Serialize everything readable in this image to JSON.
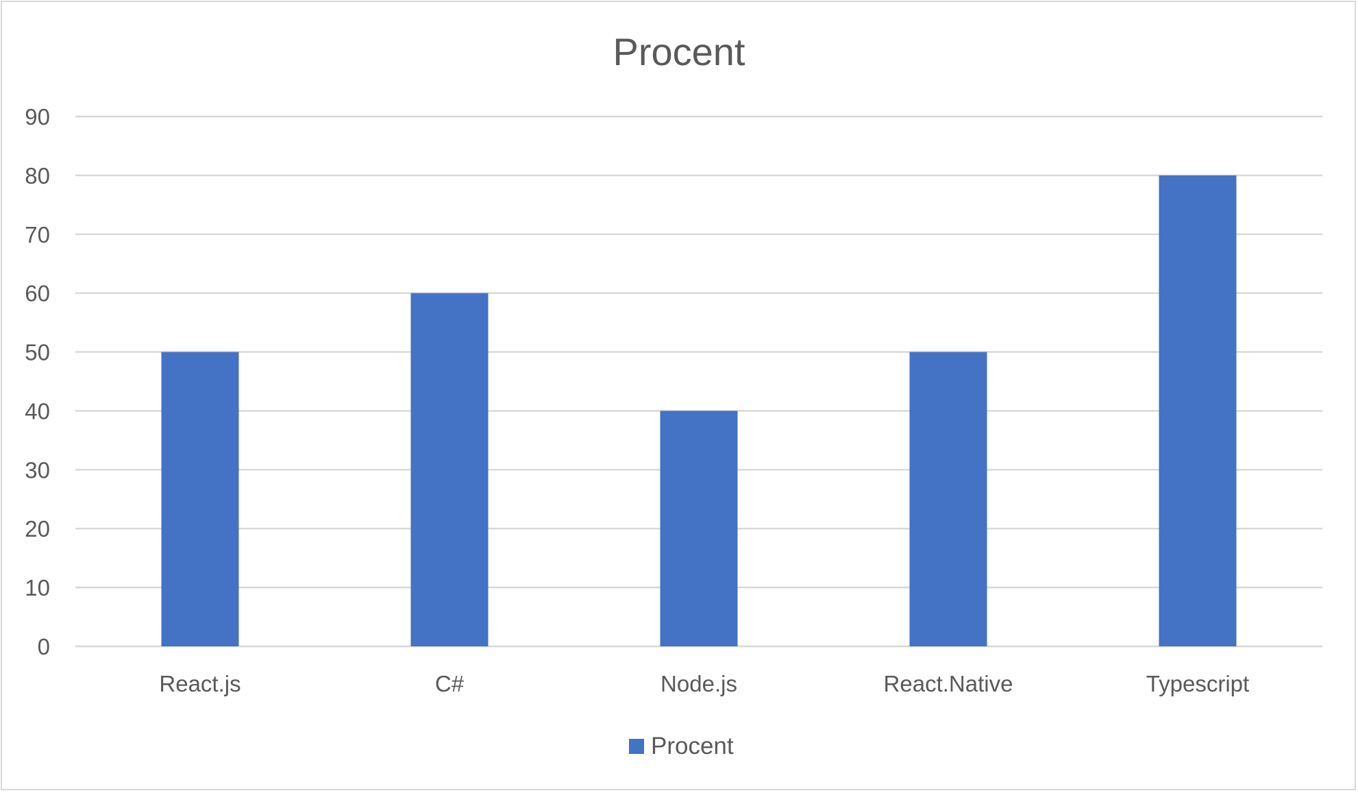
{
  "chart_data": {
    "type": "bar",
    "title": "Procent",
    "categories": [
      "React.js",
      "C#",
      "Node.js",
      "React.Native",
      "Typescript"
    ],
    "series": [
      {
        "name": "Procent",
        "values": [
          50,
          60,
          40,
          50,
          80
        ],
        "color": "#4472c4"
      }
    ],
    "ylim": [
      0,
      90
    ],
    "yticks": [
      0,
      10,
      20,
      30,
      40,
      50,
      60,
      70,
      80,
      90
    ],
    "grid": true,
    "legend_position": "bottom",
    "colors": {
      "gridline": "#d9d9d9",
      "text": "#595959",
      "frame": "#d9d9d9"
    }
  }
}
